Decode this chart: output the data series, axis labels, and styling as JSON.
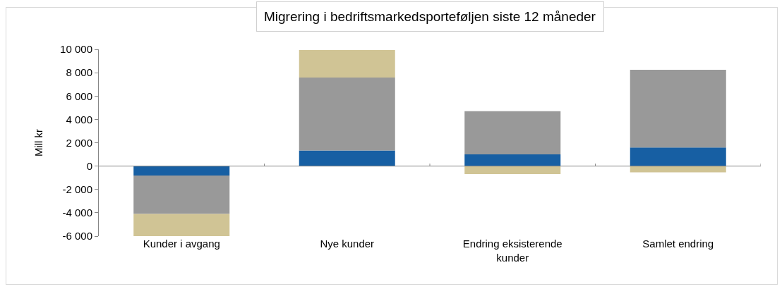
{
  "chart_data": {
    "type": "bar",
    "title": "Migrering i bedriftsmarkedsporteføljen siste 12 måneder",
    "ylabel": "Mill kr",
    "categories": [
      "Kunder i avgang",
      "Nye kunder",
      "Endring eksisterende kunder",
      "Samlet endring"
    ],
    "stacked": true,
    "series": [
      {
        "color": "#175fa3",
        "values": [
          -800,
          1330,
          1000,
          1590
        ]
      },
      {
        "color": "#999999",
        "values": [
          -3300,
          6250,
          3700,
          6660
        ]
      },
      {
        "color": "#d0c495",
        "values": [
          -2000,
          2360,
          -680,
          -540
        ]
      }
    ],
    "ylim": [
      -6000,
      10000
    ],
    "yticks": [
      {
        "value": -6000,
        "label": "-6 000"
      },
      {
        "value": -4000,
        "label": "-4 000"
      },
      {
        "value": -2000,
        "label": "-2 000"
      },
      0,
      {
        "value": 2000,
        "label": "2 000"
      },
      {
        "value": 4000,
        "label": "4 000"
      },
      {
        "value": 6000,
        "label": "6 000"
      },
      {
        "value": 8000,
        "label": "8 000"
      },
      {
        "value": 10000,
        "label": "10 000"
      }
    ]
  }
}
